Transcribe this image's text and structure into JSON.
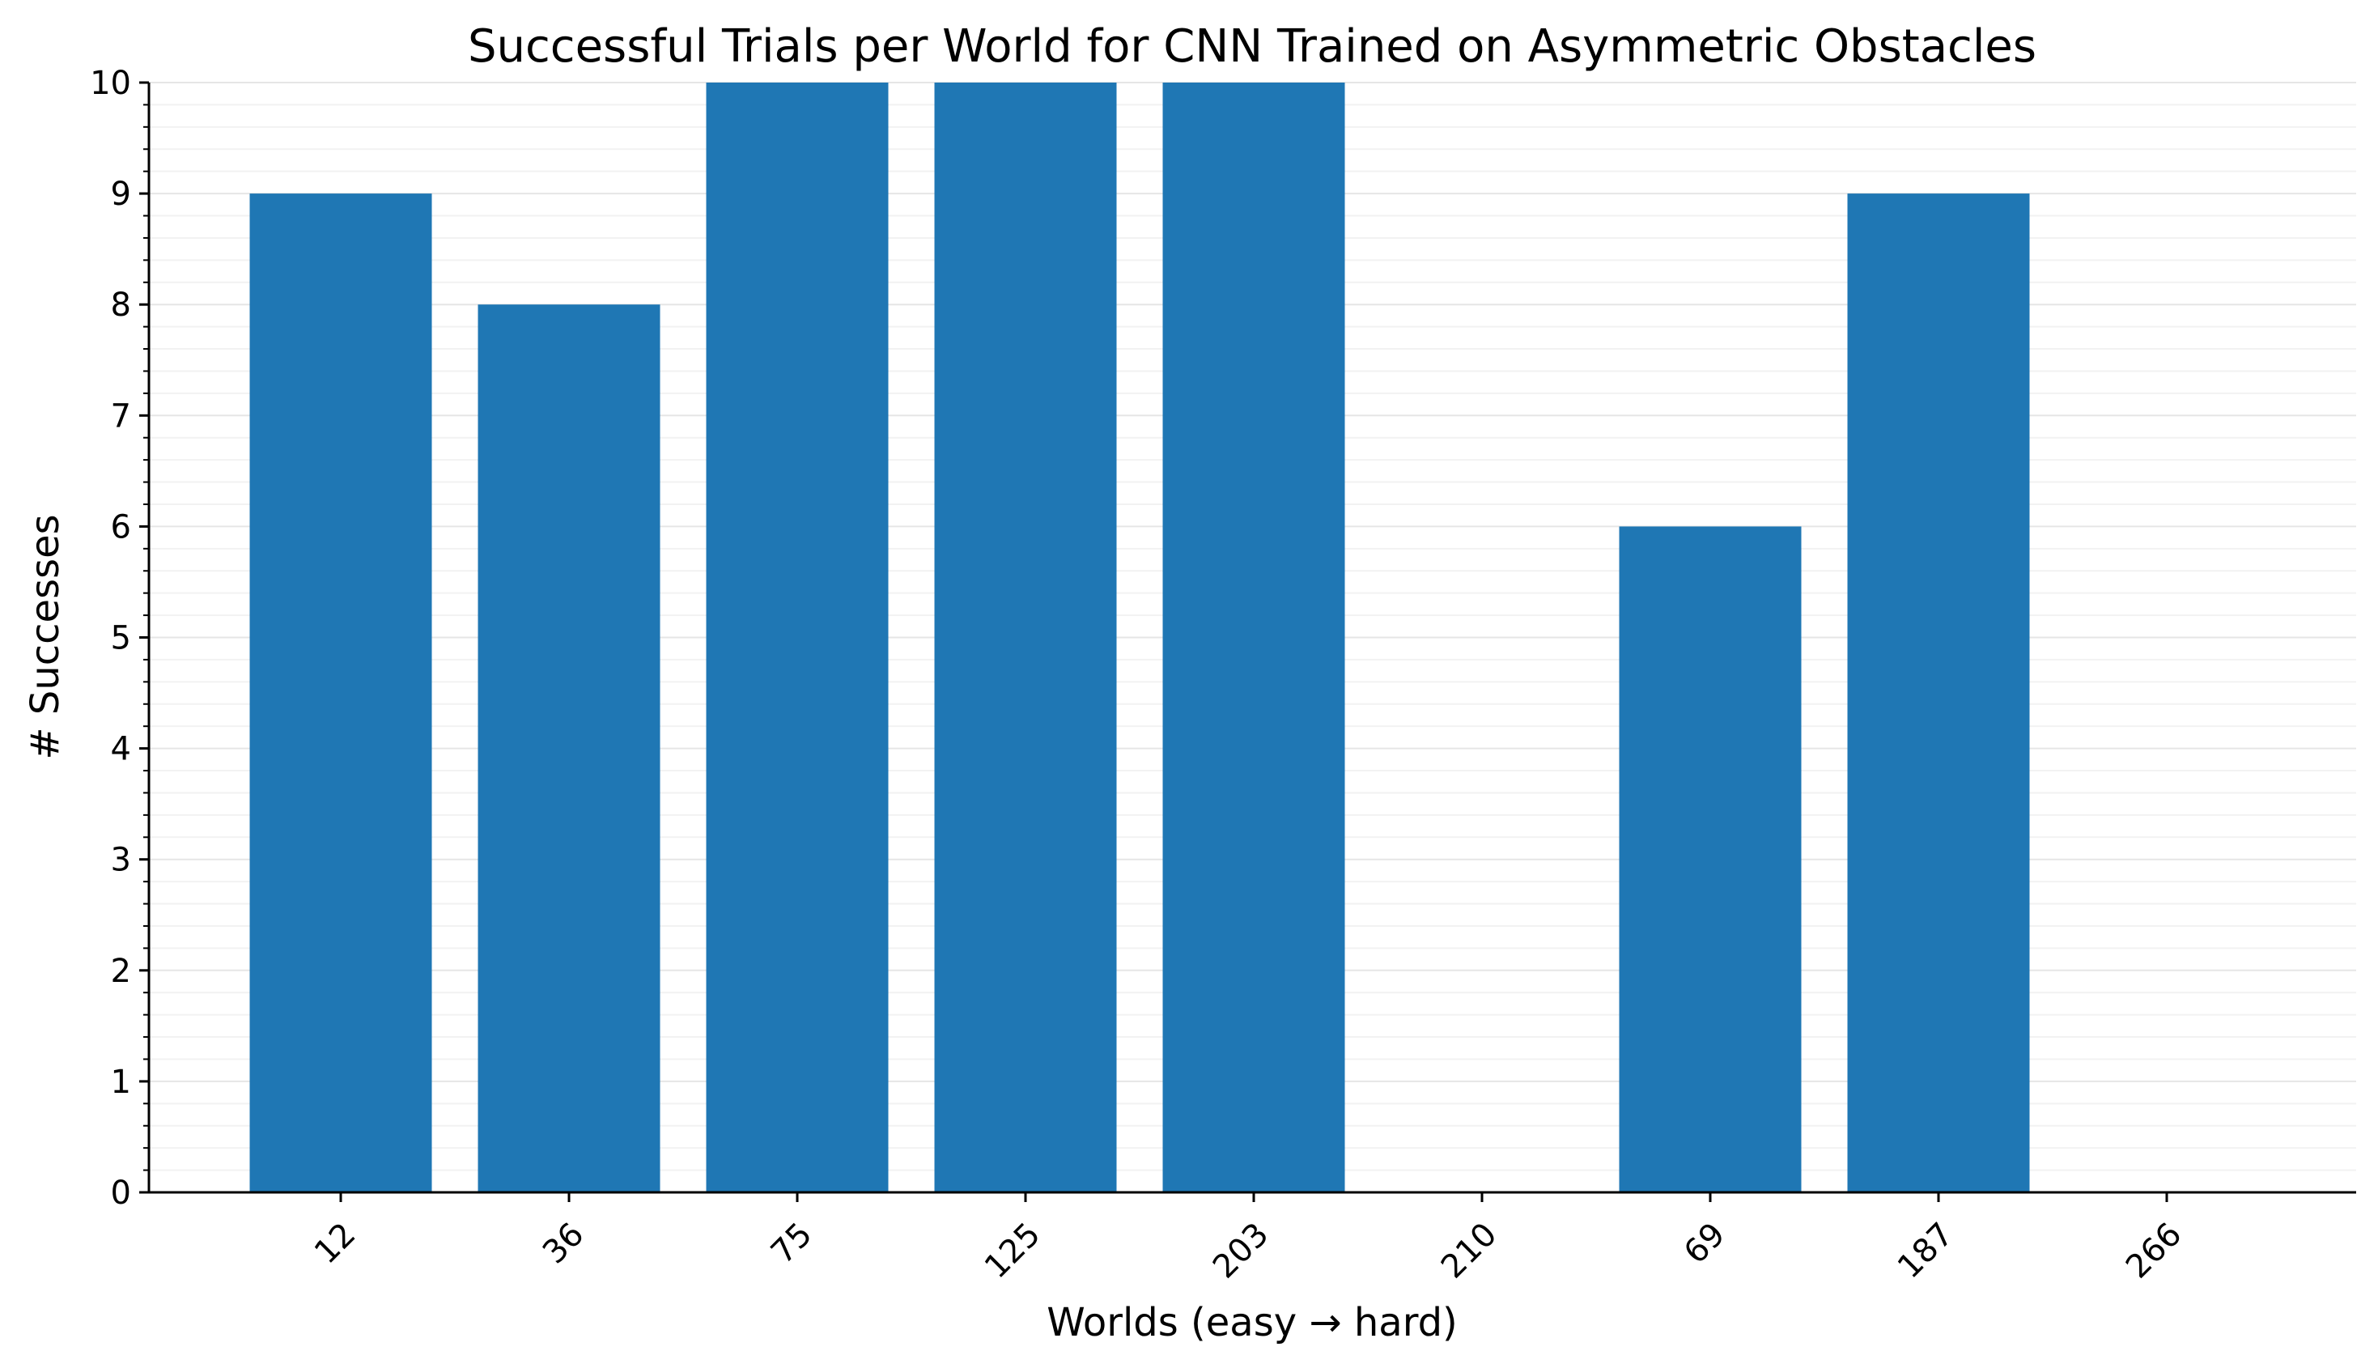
{
  "chart_data": {
    "type": "bar",
    "title": "Successful Trials per World for CNN Trained on Asymmetric Obstacles",
    "xlabel": "Worlds (easy → hard)",
    "ylabel": "# Successes",
    "categories": [
      "12",
      "36",
      "75",
      "125",
      "203",
      "210",
      "69",
      "187",
      "266"
    ],
    "values": [
      9,
      8,
      10,
      10,
      10,
      0,
      6,
      9,
      0
    ],
    "ylim": [
      0,
      10
    ],
    "yticks": [
      "0",
      "1",
      "2",
      "3",
      "4",
      "5",
      "6",
      "7",
      "8",
      "9",
      "10"
    ],
    "grid": true,
    "legend": "none",
    "bar_color": "#1f77b4",
    "grid_color": "#e6e6e6"
  }
}
